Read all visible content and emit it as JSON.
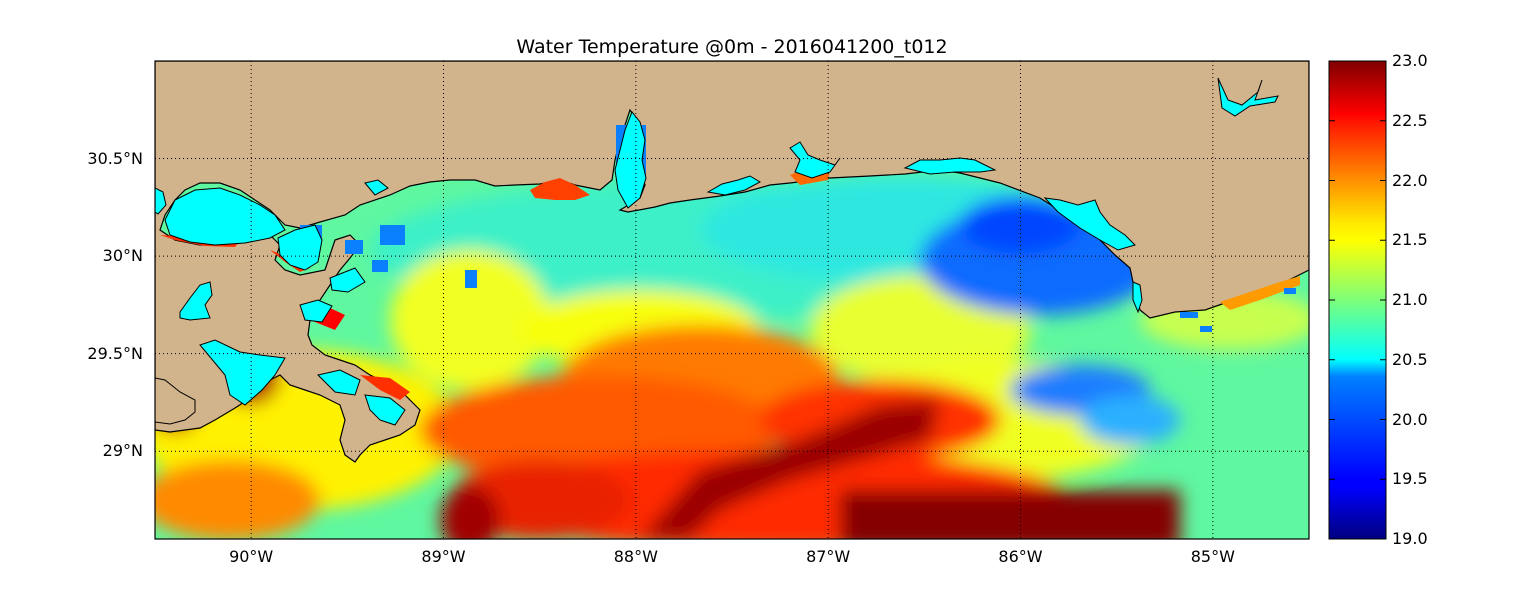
{
  "title": "Water Temperature @0m - 2016041200_t012",
  "map": {
    "lon_range": [
      -90.5,
      -84.5
    ],
    "lat_range": [
      28.55,
      31.0
    ],
    "lat_ticks": [
      {
        "value": 30.5,
        "label": "30.5°N"
      },
      {
        "value": 30.0,
        "label": "30°N"
      },
      {
        "value": 29.5,
        "label": "29.5°N"
      },
      {
        "value": 29.0,
        "label": "29°N"
      }
    ],
    "lon_ticks": [
      {
        "value": -90,
        "label": "90°W"
      },
      {
        "value": -89,
        "label": "89°W"
      },
      {
        "value": -88,
        "label": "88°W"
      },
      {
        "value": -87,
        "label": "87°W"
      },
      {
        "value": -86,
        "label": "86°W"
      },
      {
        "value": -85,
        "label": "85°W"
      }
    ],
    "grid": "dotted",
    "land_color": "#d2b48c",
    "inland_water_color": "#00ffff",
    "colormap": "jet"
  },
  "colorbar": {
    "min": 19.0,
    "max": 23.0,
    "ticks": [
      "23.0",
      "22.5",
      "22.0",
      "21.5",
      "21.0",
      "20.5",
      "20.0",
      "19.5",
      "19.0"
    ]
  }
}
